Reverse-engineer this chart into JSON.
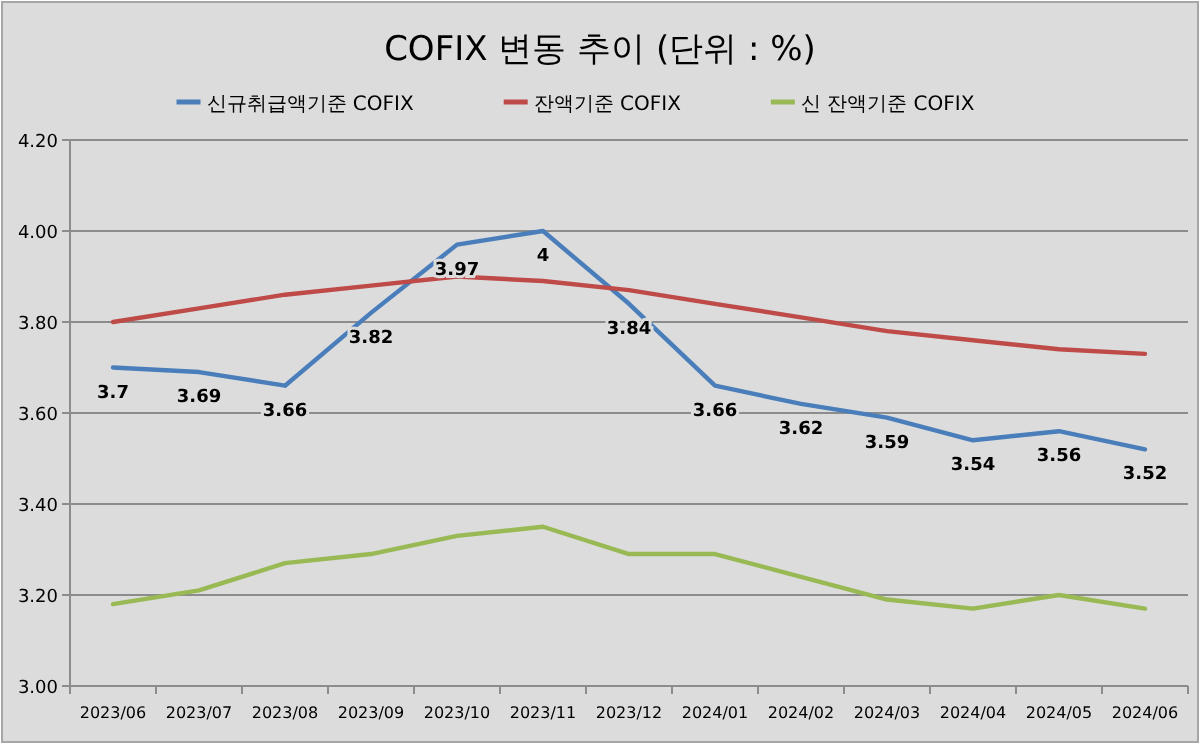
{
  "chart_data": {
    "type": "line",
    "title": "COFIX 변동 추이 (단위 : %)",
    "categories": [
      "2023/06",
      "2023/07",
      "2023/08",
      "2023/09",
      "2023/10",
      "2023/11",
      "2023/12",
      "2024/01",
      "2024/02",
      "2024/03",
      "2024/04",
      "2024/05",
      "2024/06"
    ],
    "series": [
      {
        "name": "신규취급액기준 COFIX",
        "color": "#4a7ebb",
        "values": [
          3.7,
          3.69,
          3.66,
          3.82,
          3.97,
          4,
          3.84,
          3.66,
          3.62,
          3.59,
          3.54,
          3.56,
          3.52
        ],
        "value_labels": [
          "3.7",
          "3.69",
          "3.66",
          "3.82",
          "3.97",
          "4",
          "3.84",
          "3.66",
          "3.62",
          "3.59",
          "3.54",
          "3.56",
          "3.52"
        ]
      },
      {
        "name": "잔액기준 COFIX",
        "color": "#be4b48",
        "values": [
          3.8,
          3.83,
          3.86,
          3.88,
          3.9,
          3.89,
          3.87,
          3.84,
          3.81,
          3.78,
          3.76,
          3.74,
          3.73
        ]
      },
      {
        "name": "신 잔액기준 COFIX",
        "color": "#98b954",
        "values": [
          3.18,
          3.21,
          3.27,
          3.29,
          3.33,
          3.35,
          3.29,
          3.29,
          3.24,
          3.19,
          3.17,
          3.2,
          3.17
        ]
      }
    ],
    "ylim": [
      3.0,
      4.2
    ],
    "yticks": [
      {
        "value": 3.0,
        "label": "3.00"
      },
      {
        "value": 3.2,
        "label": "3.20"
      },
      {
        "value": 3.4,
        "label": "3.40"
      },
      {
        "value": 3.6,
        "label": "3.60"
      },
      {
        "value": 3.8,
        "label": "3.80"
      },
      {
        "value": 4.0,
        "label": "4.00"
      },
      {
        "value": 4.2,
        "label": "4.20"
      }
    ],
    "grid": "y",
    "legend": "top",
    "marker": "none",
    "line_style": "solid"
  }
}
